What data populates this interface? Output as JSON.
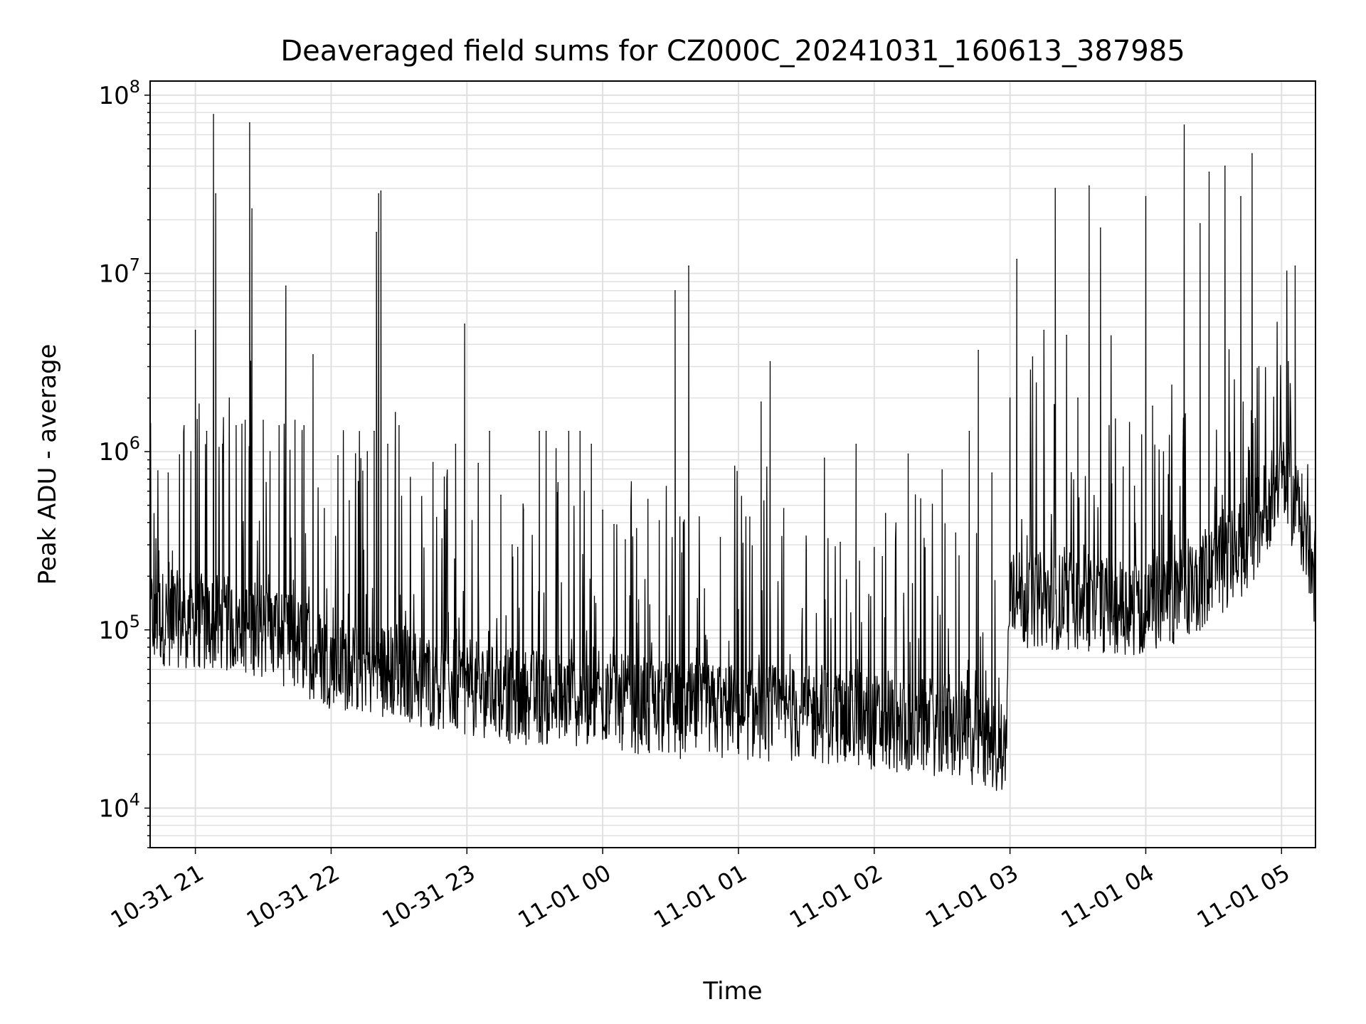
{
  "chart_data": {
    "type": "line",
    "title": "Deaveraged field sums for CZ000C_20241031_160613_387985",
    "xlabel": "Time",
    "ylabel": "Peak ADU - average",
    "yscale": "log",
    "ylim": [
      6000,
      120000000
    ],
    "xlim": [
      "2024-10-31 20:40",
      "2024-11-01 05:15"
    ],
    "grid": true,
    "legend": "none",
    "line_color": "#000000",
    "grid_color": "#e0e0e0",
    "x_ticks": [
      "10-31 21",
      "10-31 22",
      "10-31 23",
      "11-01 00",
      "11-01 01",
      "11-01 02",
      "11-01 03",
      "11-01 04",
      "11-01 05"
    ],
    "y_ticks": [
      {
        "base": "10",
        "exp": "4",
        "value": 10000
      },
      {
        "base": "10",
        "exp": "5",
        "value": 100000
      },
      {
        "base": "10",
        "exp": "6",
        "value": 1000000
      },
      {
        "base": "10",
        "exp": "7",
        "value": 10000000
      },
      {
        "base": "10",
        "exp": "8",
        "value": 100000000
      }
    ],
    "series": [
      {
        "points": [
          [
            "2024-10-31 20:40",
            130000
          ],
          [
            "2024-10-31 20:43",
            160000
          ],
          [
            "2024-10-31 20:45",
            95000
          ],
          [
            "2024-10-31 20:48",
            760000
          ],
          [
            "2024-10-31 20:50",
            88000
          ],
          [
            "2024-10-31 20:53",
            960000
          ],
          [
            "2024-10-31 20:55",
            1400000
          ],
          [
            "2024-10-31 20:58",
            1000000
          ],
          [
            "2024-10-31 21:00",
            4800000
          ],
          [
            "2024-10-31 21:02",
            120000
          ],
          [
            "2024-10-31 21:05",
            1300000
          ],
          [
            "2024-10-31 21:08",
            78000000
          ],
          [
            "2024-10-31 21:09",
            28000000
          ],
          [
            "2024-10-31 21:12",
            1100000
          ],
          [
            "2024-10-31 21:15",
            2000000
          ],
          [
            "2024-10-31 21:18",
            1400000
          ],
          [
            "2024-10-31 21:22",
            1500000
          ],
          [
            "2024-10-31 21:24",
            70000000
          ],
          [
            "2024-10-31 21:25",
            23000000
          ],
          [
            "2024-10-31 21:30",
            1500000
          ],
          [
            "2024-10-31 21:33",
            1000000
          ],
          [
            "2024-10-31 21:37",
            1400000
          ],
          [
            "2024-10-31 21:40",
            8500000
          ],
          [
            "2024-10-31 21:44",
            1500000
          ],
          [
            "2024-10-31 21:48",
            1400000
          ],
          [
            "2024-10-31 21:52",
            3500000
          ],
          [
            "2024-10-31 21:57",
            480000
          ],
          [
            "2024-10-31 22:03",
            950000
          ],
          [
            "2024-10-31 22:08",
            530000
          ],
          [
            "2024-10-31 22:12",
            680000
          ],
          [
            "2024-10-31 22:16",
            1000000
          ],
          [
            "2024-10-31 22:19",
            1300000
          ],
          [
            "2024-10-31 22:20",
            17000000
          ],
          [
            "2024-10-31 22:21",
            28000000
          ],
          [
            "2024-10-31 22:22",
            29000000
          ],
          [
            "2024-10-31 22:25",
            1100000
          ],
          [
            "2024-10-31 22:30",
            1400000
          ],
          [
            "2024-10-31 22:35",
            700000
          ],
          [
            "2024-10-31 22:40",
            560000
          ],
          [
            "2024-10-31 22:45",
            870000
          ],
          [
            "2024-10-31 22:50",
            720000
          ],
          [
            "2024-10-31 22:55",
            1100000
          ],
          [
            "2024-10-31 22:59",
            5200000
          ],
          [
            "2024-10-31 23:05",
            860000
          ],
          [
            "2024-10-31 23:10",
            1300000
          ],
          [
            "2024-10-31 23:15",
            570000
          ],
          [
            "2024-10-31 23:20",
            300000
          ],
          [
            "2024-10-31 23:25",
            470000
          ],
          [
            "2024-10-31 23:32",
            1300000
          ],
          [
            "2024-10-31 23:35",
            1300000
          ],
          [
            "2024-10-31 23:40",
            590000
          ],
          [
            "2024-10-31 23:45",
            1300000
          ],
          [
            "2024-10-31 23:50",
            1300000
          ],
          [
            "2024-10-31 23:55",
            1100000
          ],
          [
            "2024-11-01 00:00",
            470000
          ],
          [
            "2024-11-01 00:05",
            390000
          ],
          [
            "2024-11-01 00:10",
            320000
          ],
          [
            "2024-11-01 00:15",
            370000
          ],
          [
            "2024-11-01 00:20",
            540000
          ],
          [
            "2024-11-01 00:25",
            410000
          ],
          [
            "2024-11-01 00:32",
            8000000
          ],
          [
            "2024-11-01 00:38",
            11000000
          ],
          [
            "2024-11-01 00:45",
            170000
          ],
          [
            "2024-11-01 00:52",
            330000
          ],
          [
            "2024-11-01 01:00",
            130000
          ],
          [
            "2024-11-01 01:05",
            430000
          ],
          [
            "2024-11-01 01:10",
            1900000
          ],
          [
            "2024-11-01 01:14",
            3200000
          ],
          [
            "2024-11-01 01:20",
            480000
          ],
          [
            "2024-11-01 01:30",
            280000
          ],
          [
            "2024-11-01 01:38",
            920000
          ],
          [
            "2024-11-01 01:45",
            310000
          ],
          [
            "2024-11-01 01:52",
            1100000
          ],
          [
            "2024-11-01 02:00",
            290000
          ],
          [
            "2024-11-01 02:05",
            450000
          ],
          [
            "2024-11-01 02:15",
            970000
          ],
          [
            "2024-11-01 02:22",
            260000
          ],
          [
            "2024-11-01 02:30",
            790000
          ],
          [
            "2024-11-01 02:36",
            350000
          ],
          [
            "2024-11-01 02:42",
            1300000
          ],
          [
            "2024-11-01 02:46",
            3700000
          ],
          [
            "2024-11-01 02:52",
            760000
          ],
          [
            "2024-11-01 02:58",
            21000
          ],
          [
            "2024-11-01 03:00",
            2000000
          ],
          [
            "2024-11-01 03:03",
            12000000
          ],
          [
            "2024-11-01 03:10",
            3400000
          ],
          [
            "2024-11-01 03:15",
            4800000
          ],
          [
            "2024-11-01 03:20",
            30000000
          ],
          [
            "2024-11-01 03:25",
            4500000
          ],
          [
            "2024-11-01 03:30",
            2000000
          ],
          [
            "2024-11-01 03:35",
            31000000
          ],
          [
            "2024-11-01 03:40",
            18000000
          ],
          [
            "2024-11-01 03:45",
            660000
          ],
          [
            "2024-11-01 03:50",
            820000
          ],
          [
            "2024-11-01 03:55",
            640000
          ],
          [
            "2024-11-01 04:00",
            27000000
          ],
          [
            "2024-11-01 04:03",
            1800000
          ],
          [
            "2024-11-01 04:07",
            440000
          ],
          [
            "2024-11-01 04:11",
            410000
          ],
          [
            "2024-11-01 04:17",
            68000000
          ],
          [
            "2024-11-01 04:24",
            19000000
          ],
          [
            "2024-11-01 04:28",
            37000000
          ],
          [
            "2024-11-01 04:35",
            40000000
          ],
          [
            "2024-11-01 04:42",
            27000000
          ],
          [
            "2024-11-01 04:47",
            47000000
          ],
          [
            "2024-11-01 04:50",
            3000000
          ],
          [
            "2024-11-01 04:55",
            560000
          ],
          [
            "2024-11-01 05:00",
            1000000
          ],
          [
            "2024-11-01 05:03",
            3200000
          ],
          [
            "2024-11-01 05:06",
            11000000
          ],
          [
            "2024-11-01 05:09",
            560000
          ],
          [
            "2024-11-01 05:12",
            280000
          ],
          [
            "2024-11-01 05:15",
            140000
          ]
        ]
      }
    ]
  }
}
